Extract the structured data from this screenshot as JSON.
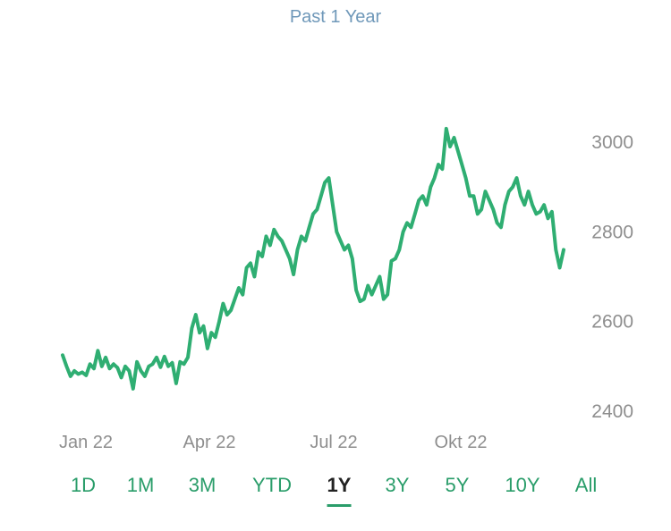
{
  "header": {
    "title": "Past 1 Year"
  },
  "range_selector": {
    "options": [
      "1D",
      "1M",
      "3M",
      "YTD",
      "1Y",
      "3Y",
      "5Y",
      "10Y",
      "All"
    ],
    "selected": "1Y"
  },
  "colors": {
    "line": "#2fae72",
    "accent": "#2a9d6a",
    "title": "#6f98b9"
  },
  "chart_data": {
    "type": "line",
    "title": "Past 1 Year",
    "xlabel": "",
    "ylabel": "",
    "x_tick_labels": [
      "Jan 22",
      "Apr 22",
      "Jul 22",
      "Okt 22"
    ],
    "y_ticks": [
      2400,
      2600,
      2800,
      3000
    ],
    "ylim": [
      2380,
      3060
    ],
    "grid": false,
    "series": [
      {
        "values": [
          2525,
          2500,
          2478,
          2490,
          2483,
          2487,
          2480,
          2505,
          2495,
          2535,
          2500,
          2520,
          2495,
          2505,
          2497,
          2475,
          2500,
          2490,
          2450,
          2510,
          2490,
          2478,
          2500,
          2505,
          2520,
          2498,
          2522,
          2500,
          2508,
          2462,
          2510,
          2505,
          2520,
          2585,
          2615,
          2575,
          2590,
          2540,
          2575,
          2565,
          2600,
          2640,
          2615,
          2625,
          2650,
          2675,
          2660,
          2720,
          2730,
          2700,
          2755,
          2745,
          2790,
          2770,
          2805,
          2790,
          2780,
          2760,
          2740,
          2705,
          2760,
          2790,
          2780,
          2810,
          2840,
          2850,
          2880,
          2910,
          2920,
          2860,
          2800,
          2780,
          2760,
          2770,
          2740,
          2670,
          2645,
          2650,
          2680,
          2660,
          2680,
          2700,
          2650,
          2660,
          2735,
          2740,
          2760,
          2800,
          2820,
          2810,
          2840,
          2870,
          2880,
          2860,
          2900,
          2920,
          2950,
          2940,
          3030,
          2990,
          3010,
          2980,
          2950,
          2920,
          2880,
          2880,
          2840,
          2850,
          2890,
          2870,
          2850,
          2820,
          2810,
          2860,
          2890,
          2900,
          2920,
          2880,
          2860,
          2890,
          2860,
          2840,
          2845,
          2860,
          2830,
          2845,
          2760,
          2720,
          2760
        ]
      }
    ]
  }
}
